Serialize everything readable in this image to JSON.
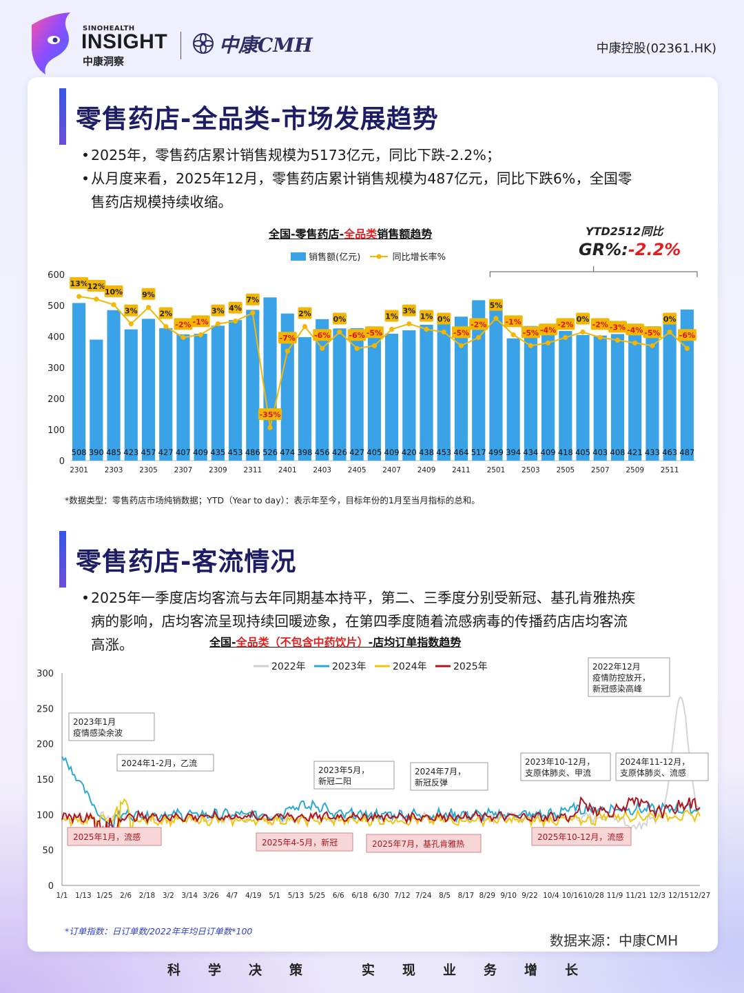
{
  "header": {
    "brand_small": "SINOHEALTH",
    "brand_big": "INSIGHT",
    "brand_cn": "中康洞察",
    "cmh_text": "中康CMH",
    "stock": "中康控股(02361.HK)"
  },
  "section1": {
    "title": "零售药店-全品类-市场发展趋势",
    "bullets": [
      "2025年，零售药店累计销售规模为5173亿元，同比下跌-2.2%；",
      "从月度来看，2025年12月，零售药店累计销售规模为487亿元，同比下跌6%，全国零",
      "售药店规模持续收缩。"
    ],
    "chart_title_a": "全国-零售药店-",
    "chart_title_red": "全品类",
    "chart_title_b": "销售额趋势",
    "legend_bar": "销售额(亿元)",
    "legend_line": "同比增长率%",
    "ytd_label": "YTD2512同比",
    "gr_prefix": "GR%:",
    "gr_value": "-2.2%",
    "footnote": "*数据类型：零售药店市场纯销数据；YTD（Year to day）：表示年至今，目标年份的1月至当月指标的总和。"
  },
  "section2": {
    "title": "零售药店-客流情况",
    "bullets": [
      "2025年一季度店均客流与去年同期基本持平，第二、三季度分别受新冠、基孔肯雅热疾",
      "病的影响，店均客流呈现持续回暖迹象，在第四季度随着流感病毒的传播药店店均客流",
      "高涨。"
    ],
    "chart_title_a": "全国-",
    "chart_title_red": "全品类（不包含中药饮片）",
    "chart_title_b": "-店均订单指数趋势",
    "footnote": "*订单指数：日订单数/2022年年均日订单数*100",
    "source": "数据来源：中康CMH"
  },
  "slogan": [
    "科",
    "学",
    "决",
    "策",
    "实",
    "现",
    "业",
    "务",
    "增",
    "长"
  ],
  "chart_data": [
    {
      "type": "bar",
      "title": "全国-零售药店-全品类销售额趋势",
      "categories": [
        "2301",
        "2302",
        "2303",
        "2304",
        "2305",
        "2306",
        "2307",
        "2308",
        "2309",
        "2310",
        "2311",
        "2312",
        "2401",
        "2402",
        "2403",
        "2404",
        "2405",
        "2406",
        "2407",
        "2408",
        "2409",
        "2410",
        "2411",
        "2412",
        "2501",
        "2502",
        "2503",
        "2504",
        "2505",
        "2506",
        "2507",
        "2508",
        "2509",
        "2510",
        "2511",
        "2512"
      ],
      "x_tick_labels": [
        "2301",
        "2303",
        "2305",
        "2307",
        "2309",
        "2311",
        "2401",
        "2403",
        "2405",
        "2407",
        "2409",
        "2411",
        "2501",
        "2503",
        "2505",
        "2507",
        "2509",
        "2511"
      ],
      "series": [
        {
          "name": "销售额(亿元)",
          "kind": "bar",
          "color": "#3aa3e8",
          "values": [
            508,
            390,
            485,
            423,
            457,
            427,
            407,
            409,
            435,
            453,
            486,
            526,
            474,
            398,
            456,
            426,
            427,
            405,
            409,
            420,
            438,
            453,
            464,
            517,
            499,
            394,
            434,
            409,
            418,
            405,
            403,
            408,
            421,
            433,
            463,
            487
          ]
        },
        {
          "name": "同比增长率%",
          "kind": "line",
          "color": "#f2b705",
          "values": [
            13,
            12,
            10,
            3,
            9,
            2,
            -2,
            -1,
            3,
            4,
            7,
            -35,
            -7,
            2,
            -6,
            0,
            -6,
            -5,
            1,
            3,
            1,
            0,
            -5,
            -2,
            5,
            -1,
            -5,
            -4,
            -2,
            0,
            -2,
            -3,
            -4,
            -5,
            0,
            -6
          ]
        }
      ],
      "ylim": [
        0,
        600
      ],
      "yticks": [
        0,
        100,
        200,
        300,
        400,
        500,
        600
      ],
      "ytd_note": "YTD2512同比 GR%:-2.2%"
    },
    {
      "type": "line",
      "title": "全国-全品类（不包含中药饮片）-店均订单指数趋势",
      "x_tick_labels": [
        "1/1",
        "1/13",
        "1/25",
        "2/6",
        "2/18",
        "3/2",
        "3/14",
        "3/26",
        "4/7",
        "4/19",
        "5/1",
        "5/13",
        "5/25",
        "6/6",
        "6/18",
        "6/30",
        "7/12",
        "7/24",
        "8/5",
        "8/17",
        "8/29",
        "9/10",
        "9/22",
        "10/4",
        "10/16",
        "10/28",
        "11/9",
        "11/21",
        "12/3",
        "12/15",
        "12/27"
      ],
      "ylim": [
        0,
        300
      ],
      "yticks": [
        0,
        50,
        100,
        150,
        200,
        250,
        300
      ],
      "series": [
        {
          "name": "2022年",
          "color": "#cfcfcf"
        },
        {
          "name": "2023年",
          "color": "#2aa7d6"
        },
        {
          "name": "2024年",
          "color": "#f1c40f"
        },
        {
          "name": "2025年",
          "color": "#b0141c"
        }
      ],
      "annotations": [
        {
          "text": [
            "2023年1月",
            "疫情感染余波"
          ],
          "style": "callout"
        },
        {
          "text": [
            "2024年1-2月，乙流"
          ],
          "style": "callout"
        },
        {
          "text": [
            "2023年5月，",
            "新冠二阳"
          ],
          "style": "callout"
        },
        {
          "text": [
            "2024年7月，",
            "新冠反弹"
          ],
          "style": "callout"
        },
        {
          "text": [
            "2023年10-12月，",
            "支原体肺炎、甲流"
          ],
          "style": "callout"
        },
        {
          "text": [
            "2024年11-12月，",
            "支原体肺炎、流感"
          ],
          "style": "callout"
        },
        {
          "text": [
            "2022年12月",
            "疫情防控放开，",
            "新冠感染高峰"
          ],
          "style": "callout"
        },
        {
          "text": [
            "2025年1月，流感"
          ],
          "style": "red"
        },
        {
          "text": [
            "2025年4-5月，新冠"
          ],
          "style": "red"
        },
        {
          "text": [
            "2025年7月，基孔肯雅热"
          ],
          "style": "red"
        },
        {
          "text": [
            "2025年10-12月，流感"
          ],
          "style": "red"
        }
      ]
    }
  ]
}
